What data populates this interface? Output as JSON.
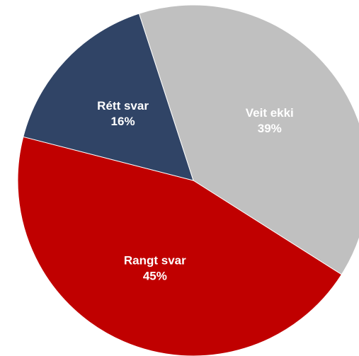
{
  "chart_data": {
    "type": "pie",
    "categories": [
      "Veit ekki",
      "Rangt svar",
      "Rétt svar"
    ],
    "values": [
      39,
      45,
      16
    ],
    "value_labels": [
      "39%",
      "45%",
      "16%"
    ],
    "colors": [
      "#c0c0c0",
      "#c00000",
      "#304466"
    ]
  }
}
